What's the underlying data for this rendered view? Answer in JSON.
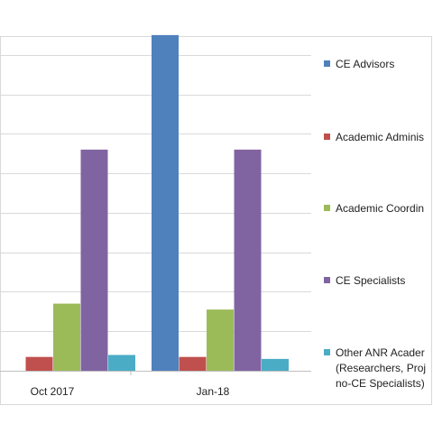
{
  "chart_data": {
    "type": "bar",
    "title": "",
    "xlabel": "",
    "ylabel": "",
    "categories": [
      "Oct 2017",
      "Jan-18"
    ],
    "ylim": [
      0,
      9
    ],
    "grid": true,
    "legend_position": "right",
    "series": [
      {
        "name": "CE Advisors",
        "color": "#4F81BD",
        "values": [
          0,
          8.5
        ]
      },
      {
        "name": "Academic Adminis",
        "color": "#C0504D",
        "values": [
          0.35,
          0.35
        ]
      },
      {
        "name": "Academic Coordin",
        "color": "#9BBB59",
        "values": [
          1.7,
          1.55
        ]
      },
      {
        "name": "CE Specialists",
        "color": "#8064A2",
        "values": [
          5.6,
          5.6
        ]
      },
      {
        "name": "Other ANR Acader (Researchers, Proj no-CE Specialists)",
        "color": "#4BACC6",
        "values": [
          0.4,
          0.3
        ],
        "legend_lines": [
          "Other ANR Acader",
          "(Researchers, Proj",
          "no-CE Specialists)"
        ]
      }
    ]
  }
}
